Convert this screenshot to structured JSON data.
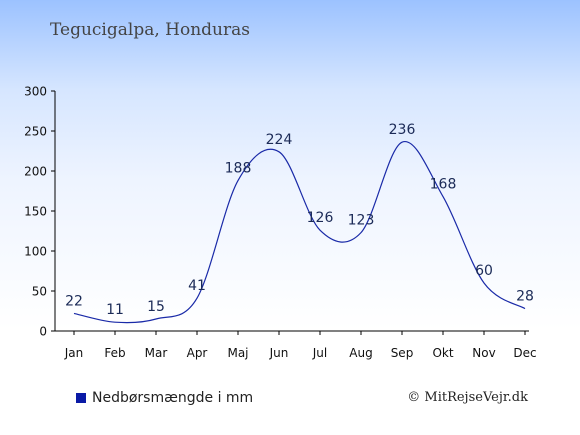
{
  "page": {
    "title": "Tegucigalpa, Honduras",
    "copyright": "© MitRejseVejr.dk"
  },
  "chart_data": {
    "type": "line",
    "categories": [
      "Jan",
      "Feb",
      "Mar",
      "Apr",
      "Maj",
      "Jun",
      "Jul",
      "Aug",
      "Sep",
      "Okt",
      "Nov",
      "Dec"
    ],
    "series": [
      {
        "name": "Nedbørsmængde i mm",
        "values": [
          22,
          11,
          15,
          41,
          188,
          224,
          126,
          123,
          236,
          168,
          60,
          28
        ],
        "color": "#1a2aa8"
      }
    ],
    "ylim": [
      0,
      300
    ],
    "yticks": [
      0,
      50,
      100,
      150,
      200,
      250,
      300
    ],
    "grid": false,
    "legend_position": "bottom-left",
    "colors": {
      "line": "#1a2aa8",
      "legend_marker": "#0a1aa6",
      "axis": "#000000"
    }
  }
}
